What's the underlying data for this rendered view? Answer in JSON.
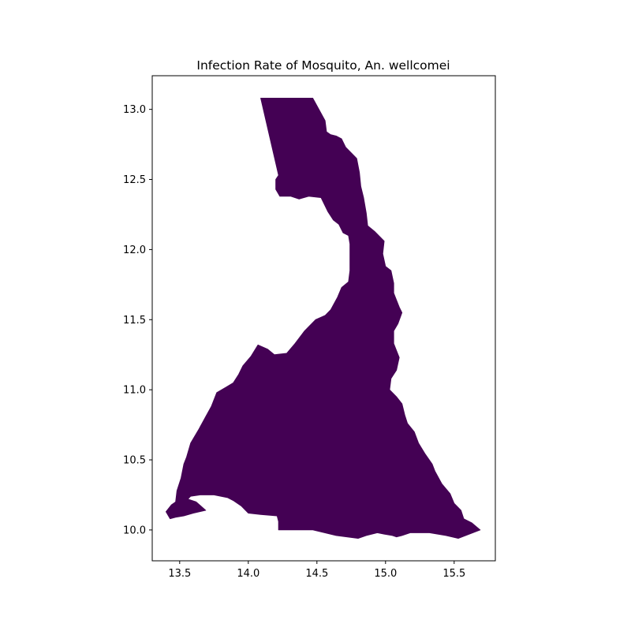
{
  "chart_data": {
    "type": "choropleth",
    "title": "Infection Rate of Mosquito, An. wellcomei",
    "xlabel": "",
    "ylabel": "",
    "xlim": [
      13.3,
      15.8
    ],
    "ylim": [
      9.78,
      13.24
    ],
    "x_ticks": [
      13.5,
      14.0,
      14.5,
      15.0,
      15.5
    ],
    "x_tick_labels": [
      "13.5",
      "14.0",
      "14.5",
      "15.0",
      "15.5"
    ],
    "y_ticks": [
      10.0,
      10.5,
      11.0,
      11.5,
      12.0,
      12.5,
      13.0
    ],
    "y_tick_labels": [
      "10.0",
      "10.5",
      "11.0",
      "11.5",
      "12.0",
      "12.5",
      "13.0"
    ],
    "grid": false,
    "legend": "none",
    "fill_color": "#440154",
    "regions": [
      {
        "coordinates": [
          [
            14.09,
            13.08
          ],
          [
            14.47,
            13.08
          ],
          [
            14.56,
            12.92
          ],
          [
            14.57,
            12.84
          ],
          [
            14.6,
            12.82
          ],
          [
            14.64,
            12.81
          ],
          [
            14.68,
            12.79
          ],
          [
            14.71,
            12.73
          ],
          [
            14.74,
            12.7
          ],
          [
            14.79,
            12.65
          ],
          [
            14.81,
            12.55
          ],
          [
            14.82,
            12.45
          ],
          [
            14.84,
            12.37
          ],
          [
            14.86,
            12.26
          ],
          [
            14.87,
            12.17
          ],
          [
            14.92,
            12.13
          ],
          [
            14.99,
            12.06
          ],
          [
            14.98,
            11.97
          ],
          [
            15.0,
            11.88
          ],
          [
            15.04,
            11.85
          ],
          [
            15.06,
            11.76
          ],
          [
            15.06,
            11.69
          ],
          [
            15.1,
            11.59
          ],
          [
            15.12,
            11.55
          ],
          [
            15.09,
            11.47
          ],
          [
            15.06,
            11.42
          ],
          [
            15.06,
            11.33
          ],
          [
            15.1,
            11.23
          ],
          [
            15.08,
            11.14
          ],
          [
            15.04,
            11.08
          ],
          [
            15.03,
            11.0
          ],
          [
            15.08,
            10.95
          ],
          [
            15.12,
            10.9
          ],
          [
            15.14,
            10.82
          ],
          [
            15.16,
            10.76
          ],
          [
            15.21,
            10.7
          ],
          [
            15.24,
            10.62
          ],
          [
            15.29,
            10.54
          ],
          [
            15.34,
            10.47
          ],
          [
            15.36,
            10.42
          ],
          [
            15.41,
            10.33
          ],
          [
            15.47,
            10.26
          ],
          [
            15.5,
            10.19
          ],
          [
            15.55,
            10.14
          ],
          [
            15.57,
            10.08
          ],
          [
            15.63,
            10.05
          ],
          [
            15.69,
            10.0
          ],
          [
            15.53,
            9.94
          ],
          [
            15.44,
            9.96
          ],
          [
            15.32,
            9.98
          ],
          [
            15.18,
            9.98
          ],
          [
            15.12,
            9.96
          ],
          [
            15.08,
            9.95
          ],
          [
            15.05,
            9.96
          ],
          [
            14.99,
            9.97
          ],
          [
            14.94,
            9.98
          ],
          [
            14.86,
            9.96
          ],
          [
            14.8,
            9.94
          ],
          [
            14.64,
            9.96
          ],
          [
            14.47,
            10.0
          ],
          [
            14.22,
            10.0
          ],
          [
            14.22,
            10.06
          ],
          [
            14.21,
            10.1
          ],
          [
            14.09,
            10.11
          ],
          [
            14.0,
            10.12
          ],
          [
            13.95,
            10.17
          ],
          [
            13.89,
            10.21
          ],
          [
            13.85,
            10.23
          ],
          [
            13.75,
            10.25
          ],
          [
            13.65,
            10.25
          ],
          [
            13.58,
            10.24
          ],
          [
            13.56,
            10.22
          ],
          [
            13.62,
            10.2
          ],
          [
            13.69,
            10.14
          ],
          [
            13.6,
            10.12
          ],
          [
            13.53,
            10.1
          ],
          [
            13.47,
            10.09
          ],
          [
            13.43,
            10.08
          ],
          [
            13.4,
            10.13
          ],
          [
            13.44,
            10.18
          ],
          [
            13.47,
            10.2
          ],
          [
            13.48,
            10.28
          ],
          [
            13.51,
            10.37
          ],
          [
            13.53,
            10.47
          ],
          [
            13.55,
            10.52
          ],
          [
            13.58,
            10.62
          ],
          [
            13.64,
            10.72
          ],
          [
            13.69,
            10.81
          ],
          [
            13.73,
            10.88
          ],
          [
            13.77,
            10.98
          ],
          [
            13.84,
            11.02
          ],
          [
            13.89,
            11.05
          ],
          [
            13.93,
            11.11
          ],
          [
            13.96,
            11.17
          ],
          [
            14.02,
            11.24
          ],
          [
            14.07,
            11.32
          ],
          [
            14.14,
            11.29
          ],
          [
            14.19,
            11.25
          ],
          [
            14.28,
            11.26
          ],
          [
            14.34,
            11.33
          ],
          [
            14.41,
            11.42
          ],
          [
            14.49,
            11.5
          ],
          [
            14.56,
            11.53
          ],
          [
            14.6,
            11.57
          ],
          [
            14.65,
            11.66
          ],
          [
            14.68,
            11.73
          ],
          [
            14.73,
            11.77
          ],
          [
            14.74,
            11.85
          ],
          [
            14.74,
            11.93
          ],
          [
            14.74,
            12.04
          ],
          [
            14.73,
            12.1
          ],
          [
            14.69,
            12.12
          ],
          [
            14.66,
            12.18
          ],
          [
            14.62,
            12.21
          ],
          [
            14.58,
            12.27
          ],
          [
            14.53,
            12.37
          ],
          [
            14.44,
            12.38
          ],
          [
            14.37,
            12.36
          ],
          [
            14.31,
            12.38
          ],
          [
            14.23,
            12.38
          ],
          [
            14.2,
            12.43
          ],
          [
            14.2,
            12.5
          ],
          [
            14.22,
            12.53
          ]
        ]
      }
    ]
  }
}
